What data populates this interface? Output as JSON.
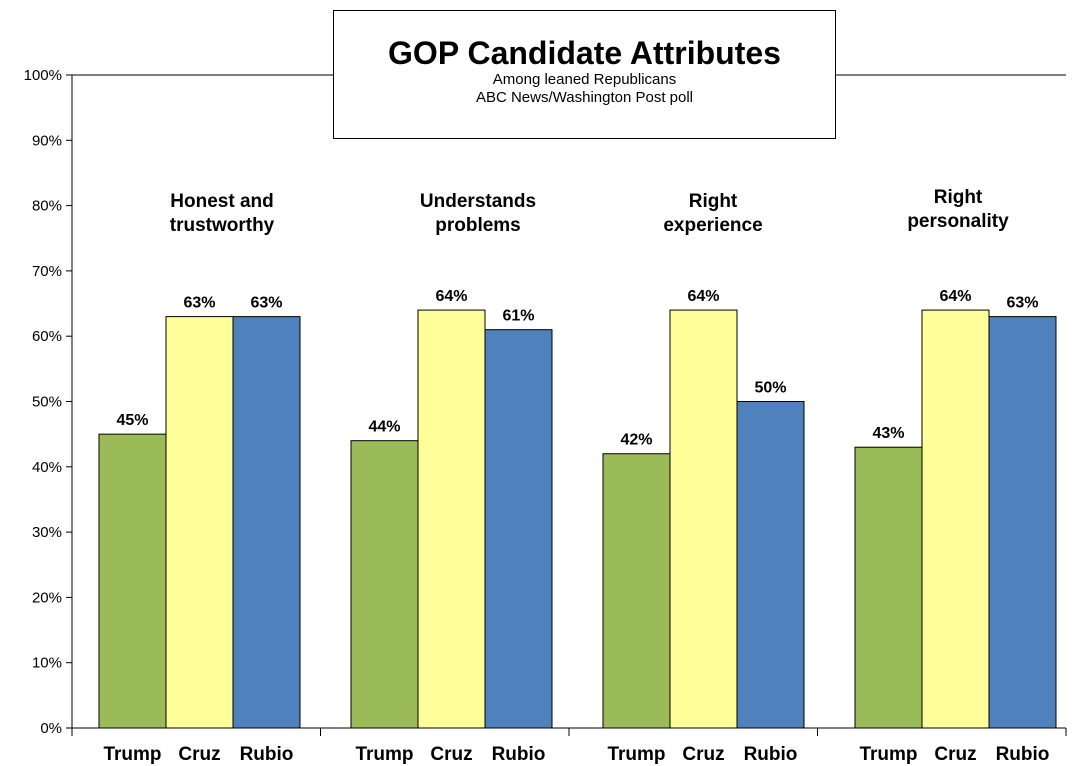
{
  "title": "GOP Candidate Attributes",
  "subtitle_line1": "Among leaned Republicans",
  "subtitle_line2": "ABC News/Washington  Post poll",
  "chart_data": {
    "type": "bar",
    "title": "GOP Candidate Attributes",
    "ylim": [
      0,
      100
    ],
    "yticks": [
      "0%",
      "10%",
      "20%",
      "30%",
      "40%",
      "50%",
      "60%",
      "70%",
      "80%",
      "90%",
      "100%"
    ],
    "groups": [
      {
        "label": [
          "Honest and",
          "trustworthy"
        ],
        "categories": [
          "Trump",
          "Cruz",
          "Rubio"
        ],
        "values": [
          45,
          63,
          63
        ]
      },
      {
        "label": [
          "Understands",
          "problems"
        ],
        "categories": [
          "Trump",
          "Cruz",
          "Rubio"
        ],
        "values": [
          44,
          64,
          61
        ]
      },
      {
        "label": [
          "Right",
          "experience"
        ],
        "categories": [
          "Trump",
          "Cruz",
          "Rubio"
        ],
        "values": [
          42,
          64,
          50
        ]
      },
      {
        "label": [
          "Right",
          "personality"
        ],
        "categories": [
          "Trump",
          "Cruz",
          "Rubio"
        ],
        "values": [
          43,
          64,
          63
        ]
      }
    ],
    "colors": {
      "Trump": "#9bbb59",
      "Cruz": "#ffff99",
      "Rubio": "#4f81bd"
    },
    "grid": false,
    "legend": "none"
  }
}
